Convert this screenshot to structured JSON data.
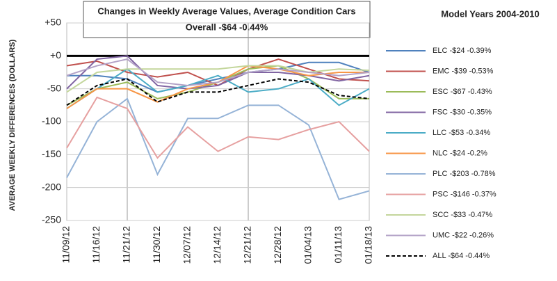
{
  "chart_data": {
    "type": "line",
    "title": "Changes in Weekly Average Values, Average Condition Cars",
    "subtitle": "Overall -$64 -0.44%",
    "note": "Model Years 2004-2010",
    "y_label": "AVERAGE WEEKLY DIFFERENCES (DOLLARS)",
    "categories": [
      "11/09/12",
      "11/16/12",
      "11/21/12",
      "11/30/12",
      "12/07/12",
      "12/14/12",
      "12/21/12",
      "12/28/12",
      "01/04/13",
      "01/11/13",
      "01/18/13"
    ],
    "ylim": [
      -250,
      50
    ],
    "yticks": [
      {
        "value": 50,
        "label": "+50"
      },
      {
        "value": 0,
        "label": "+0"
      },
      -50,
      -100,
      -150,
      -200,
      -250
    ],
    "grid": true,
    "legend": "right",
    "series": [
      {
        "name": "ELC -$24 -0.39%",
        "color": "#4f81bd",
        "values": [
          -30,
          -30,
          -35,
          -55,
          -45,
          -35,
          -25,
          -20,
          -10,
          -10,
          -25
        ]
      },
      {
        "name": "EMC -$39 -0.53%",
        "color": "#c0504d",
        "values": [
          -15,
          -8,
          -25,
          -32,
          -25,
          -45,
          -20,
          -5,
          -20,
          -35,
          -38
        ]
      },
      {
        "name": "ESC -$67 -0.43%",
        "color": "#9bbb59",
        "values": [
          -75,
          -50,
          -40,
          -65,
          -55,
          -40,
          -20,
          -15,
          -35,
          -65,
          -65
        ]
      },
      {
        "name": "FSC -$30 -0.35%",
        "color": "#8064a2",
        "values": [
          -50,
          -5,
          0,
          -45,
          -50,
          -45,
          -25,
          -25,
          -30,
          -38,
          -30
        ]
      },
      {
        "name": "LLC -$53 -0.34%",
        "color": "#4bacc6",
        "values": [
          -80,
          -50,
          -20,
          -55,
          -45,
          -30,
          -55,
          -50,
          -35,
          -75,
          -50
        ]
      },
      {
        "name": "NLC -$24 -0.2%",
        "color": "#f79646",
        "values": [
          -80,
          -50,
          -50,
          -70,
          -50,
          -40,
          -15,
          -20,
          -30,
          -25,
          -25
        ]
      },
      {
        "name": "PLC -$203 -0.78%",
        "color": "#95b3d7",
        "values": [
          -185,
          -100,
          -65,
          -180,
          -95,
          -95,
          -75,
          -75,
          -105,
          -218,
          -205
        ]
      },
      {
        "name": "PSC -$146 -0.37%",
        "color": "#e6a0a0",
        "values": [
          -140,
          -63,
          -80,
          -155,
          -108,
          -145,
          -123,
          -127,
          -112,
          -100,
          -145
        ]
      },
      {
        "name": "SCC -$33 -0.47%",
        "color": "#c3d69b",
        "values": [
          -55,
          -25,
          -20,
          -20,
          -20,
          -20,
          -15,
          -15,
          -25,
          -20,
          -22
        ]
      },
      {
        "name": "UMC -$22 -0.26%",
        "color": "#b3a2c7",
        "values": [
          -30,
          -15,
          -5,
          -40,
          -45,
          -40,
          -25,
          -20,
          -25,
          -30,
          -25
        ]
      },
      {
        "name": "ALL -$64 -0.44%",
        "color": "#000000",
        "dashed": true,
        "values": [
          -75,
          -45,
          -35,
          -70,
          -55,
          -55,
          -45,
          -35,
          -40,
          -60,
          -65
        ]
      }
    ]
  }
}
